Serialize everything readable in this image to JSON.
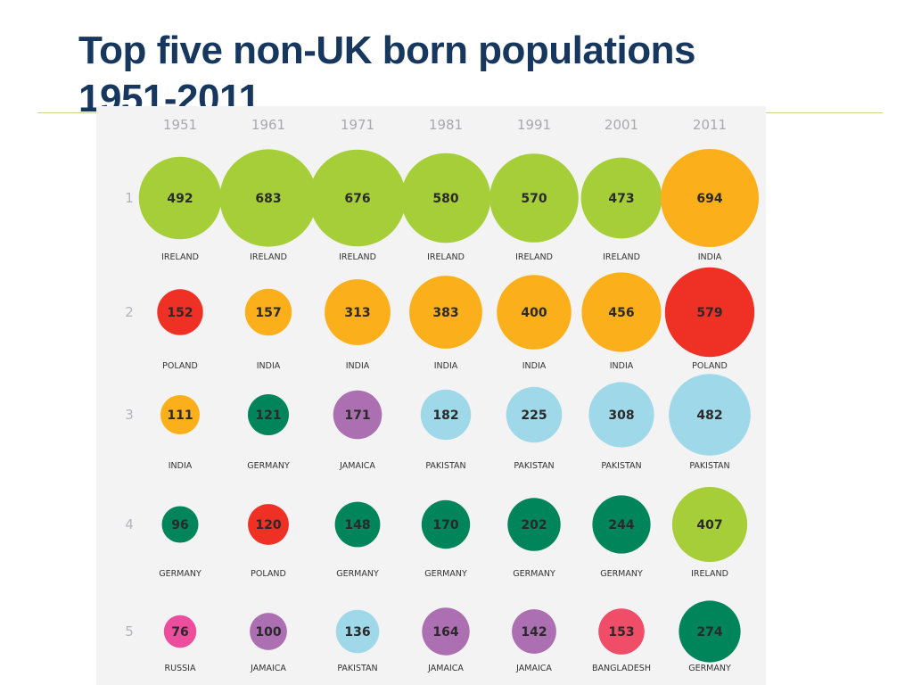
{
  "title": "Top five non-UK born populations 1951-2011",
  "chart_data": {
    "type": "bubble-grid",
    "years": [
      "1951",
      "1961",
      "1971",
      "1981",
      "1991",
      "2001",
      "2011"
    ],
    "ranks": [
      "1",
      "2",
      "3",
      "4",
      "5"
    ],
    "colors": {
      "IRELAND": "#a5ce39",
      "INDIA": "#fbb01b",
      "POLAND": "#ee3124",
      "GERMANY": "#00855a",
      "PAKISTAN": "#9fd8e8",
      "JAMAICA": "#ac6fb1",
      "RUSSIA": "#ec4d9c",
      "BANGLADESH": "#ef4d68"
    },
    "cells": [
      [
        {
          "value": 492,
          "country": "IRELAND"
        },
        {
          "value": 683,
          "country": "IRELAND"
        },
        {
          "value": 676,
          "country": "IRELAND"
        },
        {
          "value": 580,
          "country": "IRELAND"
        },
        {
          "value": 570,
          "country": "IRELAND"
        },
        {
          "value": 473,
          "country": "IRELAND"
        },
        {
          "value": 694,
          "country": "INDIA"
        }
      ],
      [
        {
          "value": 152,
          "country": "POLAND"
        },
        {
          "value": 157,
          "country": "INDIA"
        },
        {
          "value": 313,
          "country": "INDIA"
        },
        {
          "value": 383,
          "country": "INDIA"
        },
        {
          "value": 400,
          "country": "INDIA"
        },
        {
          "value": 456,
          "country": "INDIA"
        },
        {
          "value": 579,
          "country": "POLAND"
        }
      ],
      [
        {
          "value": 111,
          "country": "INDIA"
        },
        {
          "value": 121,
          "country": "GERMANY"
        },
        {
          "value": 171,
          "country": "JAMAICA"
        },
        {
          "value": 182,
          "country": "PAKISTAN"
        },
        {
          "value": 225,
          "country": "PAKISTAN"
        },
        {
          "value": 308,
          "country": "PAKISTAN"
        },
        {
          "value": 482,
          "country": "PAKISTAN"
        }
      ],
      [
        {
          "value": 96,
          "country": "GERMANY"
        },
        {
          "value": 120,
          "country": "POLAND"
        },
        {
          "value": 148,
          "country": "GERMANY"
        },
        {
          "value": 170,
          "country": "GERMANY"
        },
        {
          "value": 202,
          "country": "GERMANY"
        },
        {
          "value": 244,
          "country": "GERMANY"
        },
        {
          "value": 407,
          "country": "IRELAND"
        }
      ],
      [
        {
          "value": 76,
          "country": "RUSSIA"
        },
        {
          "value": 100,
          "country": "JAMAICA"
        },
        {
          "value": 136,
          "country": "PAKISTAN"
        },
        {
          "value": 164,
          "country": "JAMAICA"
        },
        {
          "value": 142,
          "country": "JAMAICA"
        },
        {
          "value": 153,
          "country": "BANGLADESH"
        },
        {
          "value": 274,
          "country": "GERMANY"
        }
      ]
    ]
  }
}
